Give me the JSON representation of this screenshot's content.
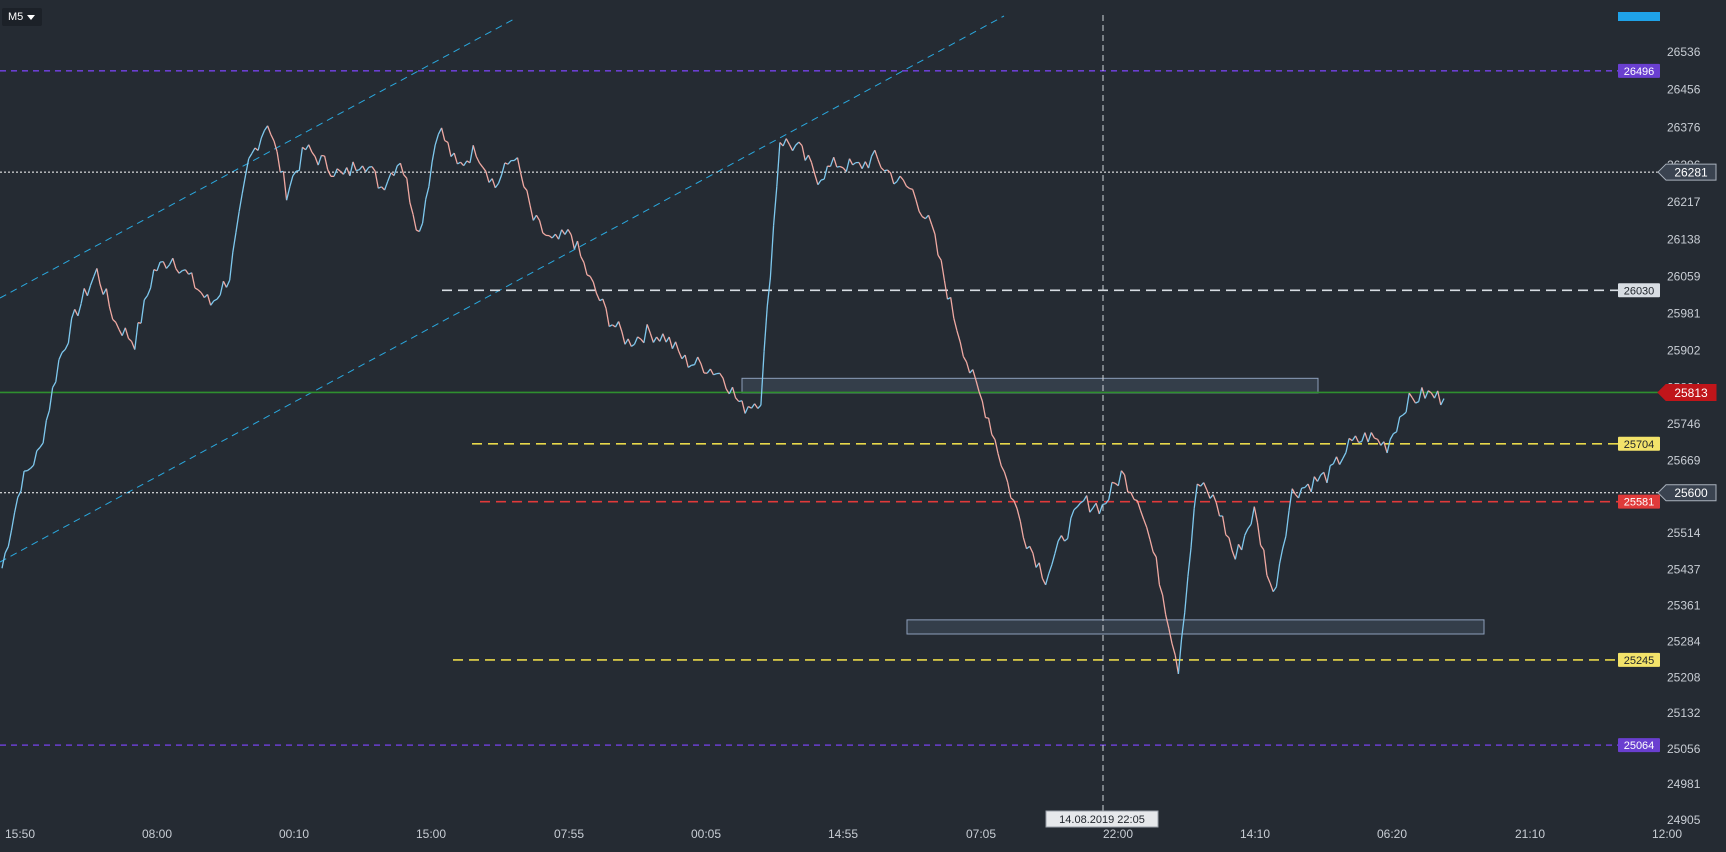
{
  "timeframe": {
    "label": "M5"
  },
  "chart_data": {
    "type": "line",
    "title": "",
    "ylim": [
      24905,
      26600
    ],
    "y_ticks": [
      26536,
      26456,
      26376,
      26296,
      26217,
      26138,
      26059,
      25981,
      25902,
      25824,
      25746,
      25669,
      25600,
      25514,
      25437,
      25361,
      25284,
      25208,
      25132,
      25056,
      24981,
      24905
    ],
    "x_ticks": [
      "15:50",
      "08:00",
      "00:10",
      "15:00",
      "07:55",
      "00:05",
      "14:55",
      "07:05",
      "22:00",
      "14:10",
      "06:20",
      "21:10",
      "12:00"
    ],
    "crosshair_label": "14.08.2019 22:05",
    "price_series": {
      "name": "",
      "values": [
        25440,
        25620,
        25690,
        25880,
        25990,
        26070,
        25960,
        25920,
        26070,
        26100,
        26050,
        26000,
        26060,
        26300,
        26390,
        26240,
        26330,
        26300,
        26270,
        26310,
        26250,
        26310,
        26150,
        26380,
        26290,
        26330,
        26250,
        26320,
        26180,
        26130,
        26150,
        26050,
        25970,
        25920,
        25940,
        25930,
        25880,
        25870,
        25850,
        25780,
        25800,
        26350,
        26330,
        26270,
        26300,
        26290,
        26310,
        26270,
        26240,
        26160,
        26000,
        25860,
        25760,
        25620,
        25500,
        25420,
        25510,
        25580,
        25570,
        25640,
        25580,
        25420,
        25230,
        25620,
        25580,
        25460,
        25560,
        25380,
        25600,
        25620,
        25640,
        25700,
        25720,
        25700,
        25790,
        25810,
        25800
      ],
      "n_points": 77
    },
    "levels": [
      {
        "price": "26496",
        "color": "#6a3fd0",
        "style": "dash",
        "label_bg": "#6a3fd0",
        "label_color": "#ffffff"
      },
      {
        "price": "26281",
        "color": "#ffffff",
        "style": "dot",
        "label_bg": "#3a4350",
        "label_color": "#ffffff"
      },
      {
        "price": "26030",
        "color": "#d8dde3",
        "style": "dash",
        "label_bg": "#d8dde3",
        "label_color": "#1e232a"
      },
      {
        "price": "25813",
        "color": "#2f8f2f",
        "style": "solid",
        "label_bg": "#c0151a",
        "label_color": "#ffffff"
      },
      {
        "price": "25704",
        "color": "#e8d84a",
        "style": "dash",
        "label_bg": "#f3e36a",
        "label_color": "#1e232a"
      },
      {
        "price": "25600",
        "color": "#ffffff",
        "style": "dot",
        "label_bg": "#3a4350",
        "label_color": "#ffffff"
      },
      {
        "price": "25581",
        "color": "#e03a3a",
        "style": "dash",
        "label_bg": "#e03a3a",
        "label_color": "#ffffff"
      },
      {
        "price": "25245",
        "color": "#e8d84a",
        "style": "dash",
        "label_bg": "#f3e36a",
        "label_color": "#1e232a"
      },
      {
        "price": "25064",
        "color": "#6a3fd0",
        "style": "dash",
        "label_bg": "#6a3fd0",
        "label_color": "#ffffff"
      }
    ],
    "zones": [
      {
        "from_price": 25843,
        "to_price": 25812
      },
      {
        "from_price": 25330,
        "to_price": 25300
      }
    ],
    "colors": {
      "background": "#252b33",
      "up": "#7ec8ee",
      "down": "#f0a9a2",
      "channel": "#2aa8de",
      "axis_text": "#c8cdd4",
      "zone_border": "#8d9fbb"
    }
  }
}
